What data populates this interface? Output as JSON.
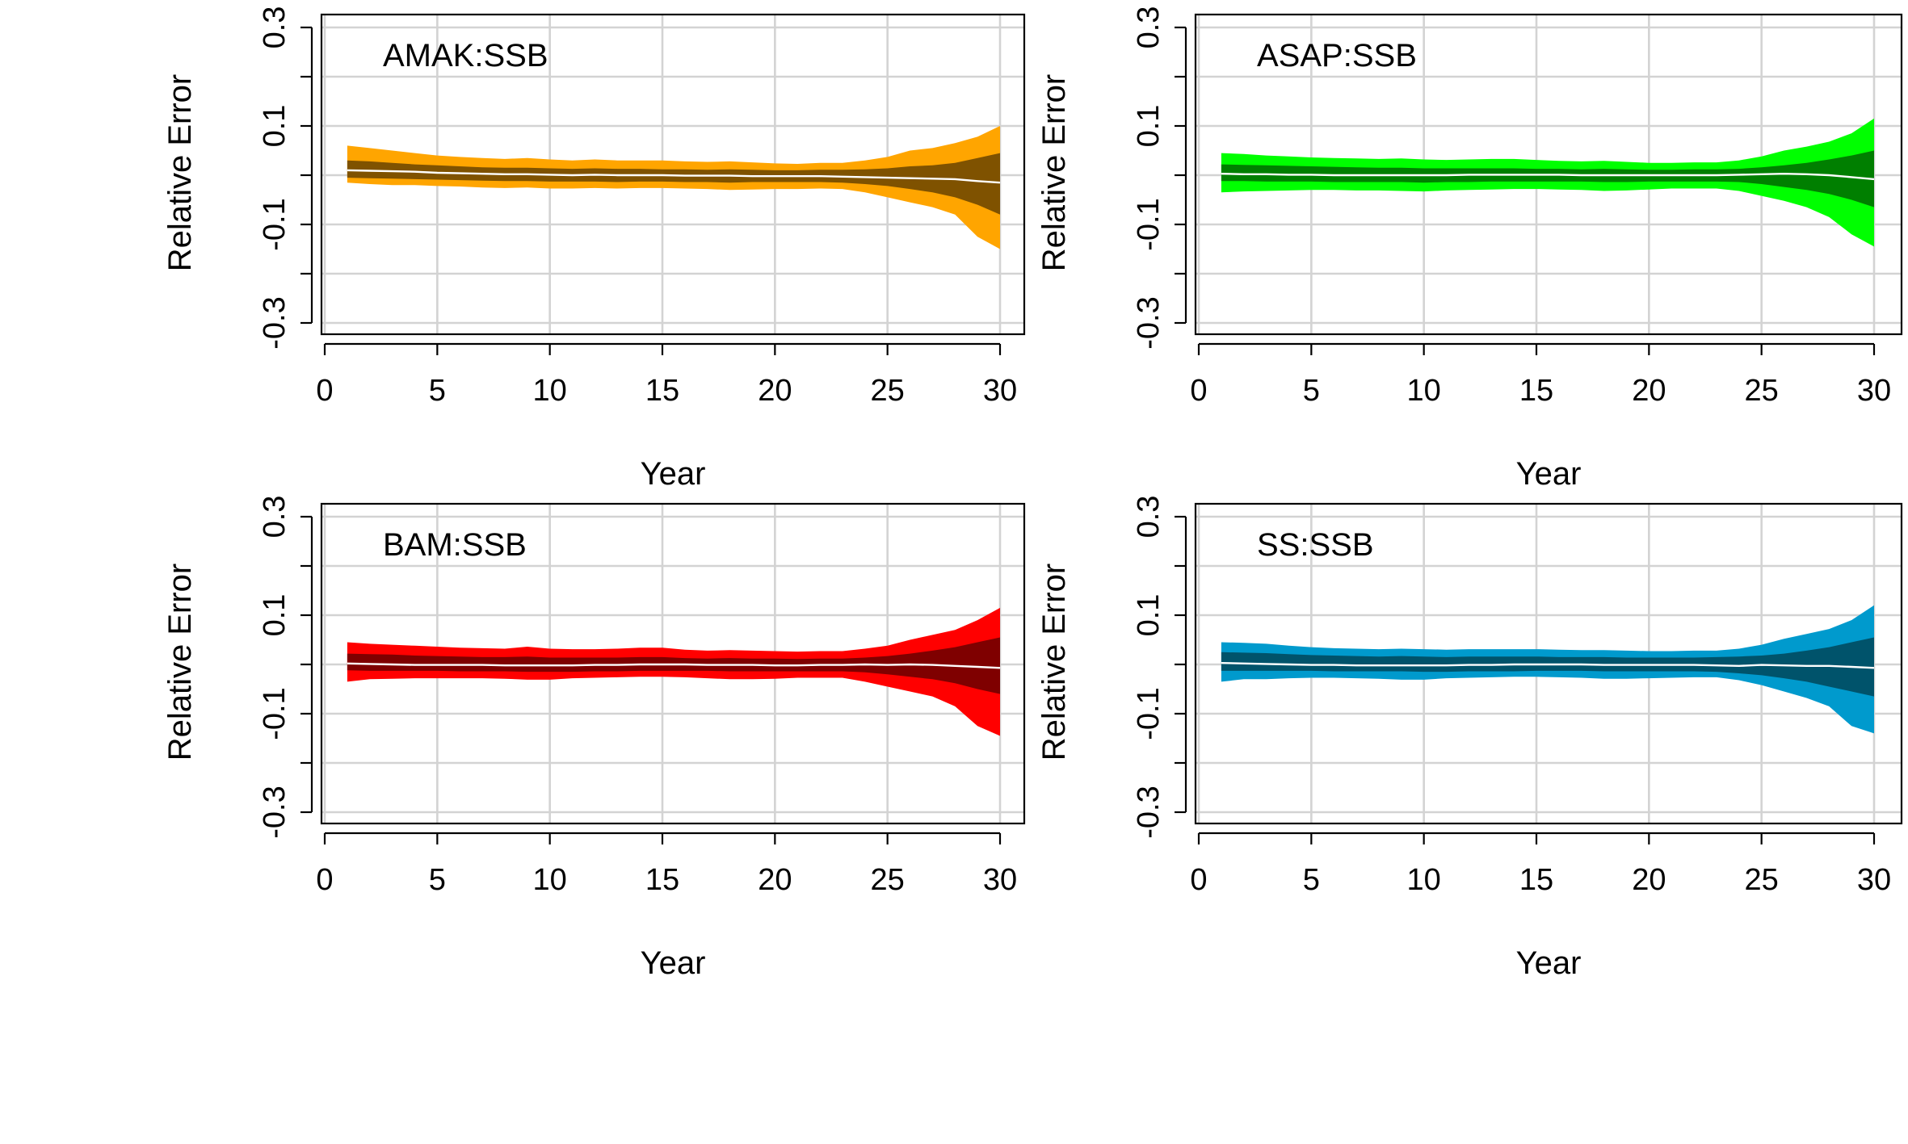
{
  "chart_data": [
    {
      "type": "area",
      "title": "AMAK:SSB",
      "xlabel": "Year",
      "ylabel": "Relative Error",
      "xlim": [
        0,
        30
      ],
      "ylim": [
        -0.3,
        0.3
      ],
      "xticks": [
        "0",
        "5",
        "10",
        "15",
        "20",
        "25",
        "30"
      ],
      "yticks": [
        "-0.3",
        "-0.1",
        "0.1",
        "0.3"
      ],
      "grid": true,
      "colors": {
        "outer": "#FFA500",
        "inner": "#7F5200",
        "median": "#FFFFFF"
      },
      "x": [
        1,
        2,
        3,
        4,
        5,
        6,
        7,
        8,
        9,
        10,
        11,
        12,
        13,
        14,
        15,
        16,
        17,
        18,
        19,
        20,
        21,
        22,
        23,
        24,
        25,
        26,
        27,
        28,
        29,
        30
      ],
      "outer_upper": [
        0.06,
        0.055,
        0.05,
        0.045,
        0.04,
        0.037,
        0.035,
        0.033,
        0.035,
        0.032,
        0.03,
        0.032,
        0.03,
        0.03,
        0.03,
        0.028,
        0.027,
        0.028,
        0.026,
        0.024,
        0.023,
        0.025,
        0.025,
        0.03,
        0.037,
        0.05,
        0.055,
        0.065,
        0.078,
        0.1
      ],
      "inner_upper": [
        0.03,
        0.028,
        0.025,
        0.022,
        0.02,
        0.018,
        0.016,
        0.015,
        0.015,
        0.014,
        0.013,
        0.014,
        0.013,
        0.013,
        0.012,
        0.012,
        0.011,
        0.012,
        0.011,
        0.01,
        0.01,
        0.011,
        0.011,
        0.012,
        0.014,
        0.018,
        0.02,
        0.025,
        0.035,
        0.045
      ],
      "median": [
        0.01,
        0.009,
        0.008,
        0.007,
        0.005,
        0.004,
        0.003,
        0.002,
        0.002,
        0.001,
        0.0,
        0.001,
        0.0,
        0.0,
        0.0,
        -0.001,
        -0.001,
        -0.001,
        -0.002,
        -0.002,
        -0.002,
        -0.002,
        -0.003,
        -0.004,
        -0.005,
        -0.006,
        -0.007,
        -0.008,
        -0.012,
        -0.015
      ],
      "inner_lower": [
        -0.005,
        -0.006,
        -0.007,
        -0.008,
        -0.009,
        -0.01,
        -0.011,
        -0.012,
        -0.012,
        -0.013,
        -0.013,
        -0.013,
        -0.014,
        -0.013,
        -0.013,
        -0.014,
        -0.014,
        -0.015,
        -0.014,
        -0.014,
        -0.014,
        -0.014,
        -0.015,
        -0.018,
        -0.022,
        -0.028,
        -0.035,
        -0.045,
        -0.06,
        -0.08
      ],
      "outer_lower": [
        -0.015,
        -0.018,
        -0.02,
        -0.02,
        -0.022,
        -0.023,
        -0.025,
        -0.026,
        -0.025,
        -0.027,
        -0.027,
        -0.026,
        -0.027,
        -0.026,
        -0.026,
        -0.027,
        -0.028,
        -0.03,
        -0.029,
        -0.028,
        -0.028,
        -0.027,
        -0.028,
        -0.035,
        -0.045,
        -0.055,
        -0.065,
        -0.08,
        -0.125,
        -0.15
      ]
    },
    {
      "type": "area",
      "title": "ASAP:SSB",
      "xlabel": "Year",
      "ylabel": "Relative Error",
      "xlim": [
        0,
        30
      ],
      "ylim": [
        -0.3,
        0.3
      ],
      "xticks": [
        "0",
        "5",
        "10",
        "15",
        "20",
        "25",
        "30"
      ],
      "yticks": [
        "-0.3",
        "-0.1",
        "0.1",
        "0.3"
      ],
      "grid": true,
      "colors": {
        "outer": "#00FF00",
        "inner": "#007F00",
        "median": "#FFFFFF"
      },
      "x": [
        1,
        2,
        3,
        4,
        5,
        6,
        7,
        8,
        9,
        10,
        11,
        12,
        13,
        14,
        15,
        16,
        17,
        18,
        19,
        20,
        21,
        22,
        23,
        24,
        25,
        26,
        27,
        28,
        29,
        30
      ],
      "outer_upper": [
        0.045,
        0.043,
        0.04,
        0.038,
        0.036,
        0.035,
        0.034,
        0.033,
        0.034,
        0.032,
        0.031,
        0.032,
        0.033,
        0.033,
        0.031,
        0.029,
        0.028,
        0.029,
        0.027,
        0.025,
        0.025,
        0.026,
        0.026,
        0.03,
        0.038,
        0.05,
        0.058,
        0.068,
        0.085,
        0.115
      ],
      "inner_upper": [
        0.022,
        0.021,
        0.02,
        0.019,
        0.018,
        0.017,
        0.016,
        0.015,
        0.015,
        0.014,
        0.014,
        0.014,
        0.014,
        0.014,
        0.013,
        0.013,
        0.012,
        0.013,
        0.012,
        0.011,
        0.011,
        0.012,
        0.012,
        0.013,
        0.016,
        0.02,
        0.025,
        0.032,
        0.04,
        0.05
      ],
      "median": [
        0.003,
        0.002,
        0.002,
        0.001,
        0.001,
        0.0,
        0.0,
        0.0,
        0.0,
        0.0,
        0.0,
        0.001,
        0.001,
        0.001,
        0.001,
        0.001,
        0.0,
        0.0,
        0.0,
        0.0,
        0.0,
        0.0,
        0.0,
        0.001,
        0.002,
        0.003,
        0.002,
        0.0,
        -0.004,
        -0.008
      ],
      "inner_lower": [
        -0.012,
        -0.012,
        -0.013,
        -0.013,
        -0.013,
        -0.014,
        -0.014,
        -0.014,
        -0.014,
        -0.015,
        -0.014,
        -0.014,
        -0.013,
        -0.013,
        -0.013,
        -0.013,
        -0.013,
        -0.014,
        -0.014,
        -0.013,
        -0.013,
        -0.013,
        -0.013,
        -0.014,
        -0.018,
        -0.024,
        -0.03,
        -0.038,
        -0.05,
        -0.065
      ],
      "outer_lower": [
        -0.035,
        -0.033,
        -0.032,
        -0.031,
        -0.03,
        -0.03,
        -0.031,
        -0.031,
        -0.032,
        -0.033,
        -0.031,
        -0.03,
        -0.029,
        -0.028,
        -0.028,
        -0.029,
        -0.03,
        -0.032,
        -0.031,
        -0.029,
        -0.027,
        -0.027,
        -0.027,
        -0.032,
        -0.042,
        -0.052,
        -0.065,
        -0.085,
        -0.12,
        -0.145
      ]
    },
    {
      "type": "area",
      "title": "BAM:SSB",
      "xlabel": "Year",
      "ylabel": "Relative Error",
      "xlim": [
        0,
        30
      ],
      "ylim": [
        -0.3,
        0.3
      ],
      "xticks": [
        "0",
        "5",
        "10",
        "15",
        "20",
        "25",
        "30"
      ],
      "yticks": [
        "-0.3",
        "-0.1",
        "0.1",
        "0.3"
      ],
      "grid": true,
      "colors": {
        "outer": "#FF0000",
        "inner": "#7F0000",
        "median": "#FFFFFF"
      },
      "x": [
        1,
        2,
        3,
        4,
        5,
        6,
        7,
        8,
        9,
        10,
        11,
        12,
        13,
        14,
        15,
        16,
        17,
        18,
        19,
        20,
        21,
        22,
        23,
        24,
        25,
        26,
        27,
        28,
        29,
        30
      ],
      "outer_upper": [
        0.045,
        0.042,
        0.04,
        0.038,
        0.036,
        0.034,
        0.033,
        0.032,
        0.036,
        0.032,
        0.031,
        0.031,
        0.032,
        0.034,
        0.034,
        0.03,
        0.028,
        0.029,
        0.028,
        0.027,
        0.026,
        0.027,
        0.027,
        0.032,
        0.038,
        0.05,
        0.06,
        0.07,
        0.09,
        0.115
      ],
      "inner_upper": [
        0.022,
        0.021,
        0.02,
        0.018,
        0.017,
        0.016,
        0.015,
        0.015,
        0.016,
        0.014,
        0.014,
        0.014,
        0.014,
        0.015,
        0.015,
        0.013,
        0.012,
        0.013,
        0.012,
        0.012,
        0.011,
        0.012,
        0.012,
        0.014,
        0.017,
        0.022,
        0.028,
        0.035,
        0.045,
        0.055
      ],
      "median": [
        0.002,
        0.001,
        0.0,
        -0.001,
        -0.001,
        -0.001,
        -0.001,
        -0.002,
        -0.002,
        -0.002,
        -0.002,
        -0.001,
        -0.001,
        0.0,
        0.0,
        0.0,
        -0.001,
        -0.001,
        -0.001,
        -0.002,
        -0.002,
        -0.001,
        -0.001,
        0.0,
        -0.001,
        0.0,
        -0.001,
        -0.003,
        -0.005,
        -0.007
      ],
      "inner_lower": [
        -0.012,
        -0.013,
        -0.013,
        -0.013,
        -0.013,
        -0.014,
        -0.014,
        -0.014,
        -0.015,
        -0.015,
        -0.015,
        -0.014,
        -0.014,
        -0.013,
        -0.013,
        -0.013,
        -0.013,
        -0.014,
        -0.014,
        -0.014,
        -0.014,
        -0.014,
        -0.014,
        -0.016,
        -0.02,
        -0.025,
        -0.03,
        -0.038,
        -0.05,
        -0.06
      ],
      "outer_lower": [
        -0.035,
        -0.03,
        -0.029,
        -0.028,
        -0.028,
        -0.028,
        -0.028,
        -0.029,
        -0.031,
        -0.031,
        -0.028,
        -0.027,
        -0.026,
        -0.025,
        -0.025,
        -0.026,
        -0.028,
        -0.03,
        -0.03,
        -0.029,
        -0.027,
        -0.027,
        -0.027,
        -0.035,
        -0.045,
        -0.055,
        -0.065,
        -0.085,
        -0.125,
        -0.145
      ]
    },
    {
      "type": "area",
      "title": "SS:SSB",
      "xlabel": "Year",
      "ylabel": "Relative Error",
      "xlim": [
        0,
        30
      ],
      "ylim": [
        -0.3,
        0.3
      ],
      "xticks": [
        "0",
        "5",
        "10",
        "15",
        "20",
        "25",
        "30"
      ],
      "yticks": [
        "-0.3",
        "-0.1",
        "0.1",
        "0.3"
      ],
      "grid": true,
      "colors": {
        "outer": "#009ACD",
        "inner": "#00536B",
        "median": "#FFFFFF"
      },
      "x": [
        1,
        2,
        3,
        4,
        5,
        6,
        7,
        8,
        9,
        10,
        11,
        12,
        13,
        14,
        15,
        16,
        17,
        18,
        19,
        20,
        21,
        22,
        23,
        24,
        25,
        26,
        27,
        28,
        29,
        30
      ],
      "outer_upper": [
        0.045,
        0.044,
        0.042,
        0.038,
        0.035,
        0.033,
        0.032,
        0.031,
        0.032,
        0.031,
        0.03,
        0.031,
        0.031,
        0.031,
        0.031,
        0.03,
        0.029,
        0.029,
        0.028,
        0.027,
        0.027,
        0.028,
        0.028,
        0.032,
        0.04,
        0.052,
        0.062,
        0.072,
        0.09,
        0.12
      ],
      "inner_upper": [
        0.025,
        0.024,
        0.023,
        0.021,
        0.019,
        0.018,
        0.017,
        0.016,
        0.017,
        0.016,
        0.015,
        0.016,
        0.016,
        0.016,
        0.016,
        0.015,
        0.015,
        0.015,
        0.014,
        0.014,
        0.014,
        0.014,
        0.015,
        0.016,
        0.018,
        0.022,
        0.028,
        0.035,
        0.045,
        0.055
      ],
      "median": [
        0.003,
        0.002,
        0.001,
        0.0,
        -0.001,
        -0.001,
        -0.002,
        -0.002,
        -0.002,
        -0.002,
        -0.002,
        -0.001,
        -0.001,
        0.0,
        0.0,
        0.0,
        0.0,
        -0.001,
        -0.001,
        -0.001,
        -0.001,
        -0.001,
        -0.002,
        -0.003,
        -0.001,
        -0.002,
        -0.003,
        -0.003,
        -0.005,
        -0.007
      ],
      "inner_lower": [
        -0.013,
        -0.013,
        -0.013,
        -0.013,
        -0.013,
        -0.014,
        -0.014,
        -0.014,
        -0.014,
        -0.015,
        -0.015,
        -0.014,
        -0.014,
        -0.014,
        -0.013,
        -0.013,
        -0.013,
        -0.014,
        -0.014,
        -0.014,
        -0.014,
        -0.014,
        -0.015,
        -0.018,
        -0.022,
        -0.028,
        -0.035,
        -0.045,
        -0.055,
        -0.065
      ],
      "outer_lower": [
        -0.035,
        -0.03,
        -0.03,
        -0.028,
        -0.027,
        -0.027,
        -0.028,
        -0.029,
        -0.031,
        -0.031,
        -0.028,
        -0.027,
        -0.026,
        -0.025,
        -0.025,
        -0.026,
        -0.027,
        -0.029,
        -0.029,
        -0.028,
        -0.027,
        -0.026,
        -0.026,
        -0.032,
        -0.042,
        -0.055,
        -0.068,
        -0.085,
        -0.125,
        -0.14
      ]
    }
  ]
}
